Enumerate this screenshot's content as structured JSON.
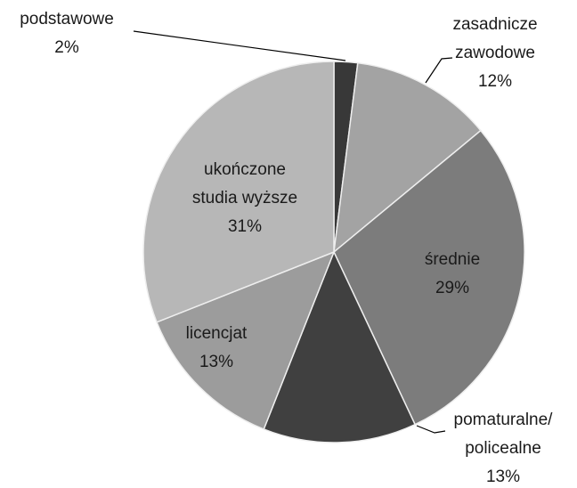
{
  "chart_data": {
    "type": "pie",
    "categories": [
      "podstawowe",
      "zasadnicze\nzawodowe",
      "średnie",
      "pomaturalne/\npolicealne",
      "licencjat",
      "ukończone\nstudia wyższe"
    ],
    "values": [
      2,
      12,
      29,
      13,
      13,
      31
    ],
    "value_labels": [
      "2%",
      "12%",
      "29%",
      "13%",
      "13%",
      "31%"
    ],
    "colors": [
      "#383838",
      "#a3a3a3",
      "#7c7c7c",
      "#404040",
      "#9c9c9c",
      "#b7b7b7"
    ]
  }
}
